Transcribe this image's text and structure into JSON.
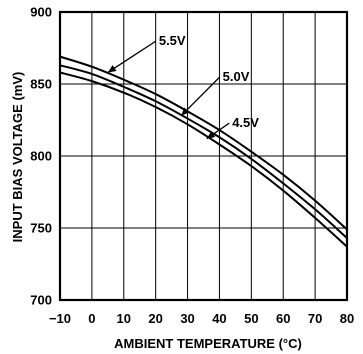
{
  "chart_data": {
    "type": "line",
    "title": "",
    "xlabel": "AMBIENT TEMPERATURE (°C)",
    "ylabel": "INPUT BIAS VOLTAGE (mV)",
    "xlim": [
      -10,
      80
    ],
    "ylim": [
      700,
      900
    ],
    "x_ticks": [
      "−10",
      "0",
      "10",
      "20",
      "30",
      "40",
      "50",
      "60",
      "70",
      "80"
    ],
    "y_ticks": [
      "700",
      "750",
      "800",
      "850",
      "900"
    ],
    "grid": true,
    "series": [
      {
        "name": "5.5V",
        "x": [
          -10,
          0,
          10,
          20,
          30,
          40,
          50,
          60,
          70,
          80
        ],
        "y": [
          869,
          862,
          853,
          843,
          831,
          818,
          803,
          787,
          769,
          749
        ]
      },
      {
        "name": "5.0V",
        "x": [
          -10,
          0,
          10,
          20,
          30,
          40,
          50,
          60,
          70,
          80
        ],
        "y": [
          863,
          857,
          848,
          838,
          826,
          813,
          798,
          781,
          763,
          743
        ]
      },
      {
        "name": "4.5V",
        "x": [
          -10,
          0,
          10,
          20,
          30,
          40,
          50,
          60,
          70,
          80
        ],
        "y": [
          858,
          852,
          844,
          834,
          822,
          808,
          793,
          776,
          757,
          737
        ]
      }
    ],
    "annotations": [
      {
        "series": "5.5V",
        "text": "5.5V",
        "point_x": 5,
        "point_y": 858,
        "label_x": 21,
        "label_y": 877
      },
      {
        "series": "5.0V",
        "text": "5.0V",
        "point_x": 28,
        "point_y": 828,
        "label_x": 41,
        "label_y": 852
      },
      {
        "series": "4.5V",
        "text": "4.5V",
        "point_x": 36,
        "point_y": 812,
        "label_x": 44,
        "label_y": 820
      }
    ]
  }
}
